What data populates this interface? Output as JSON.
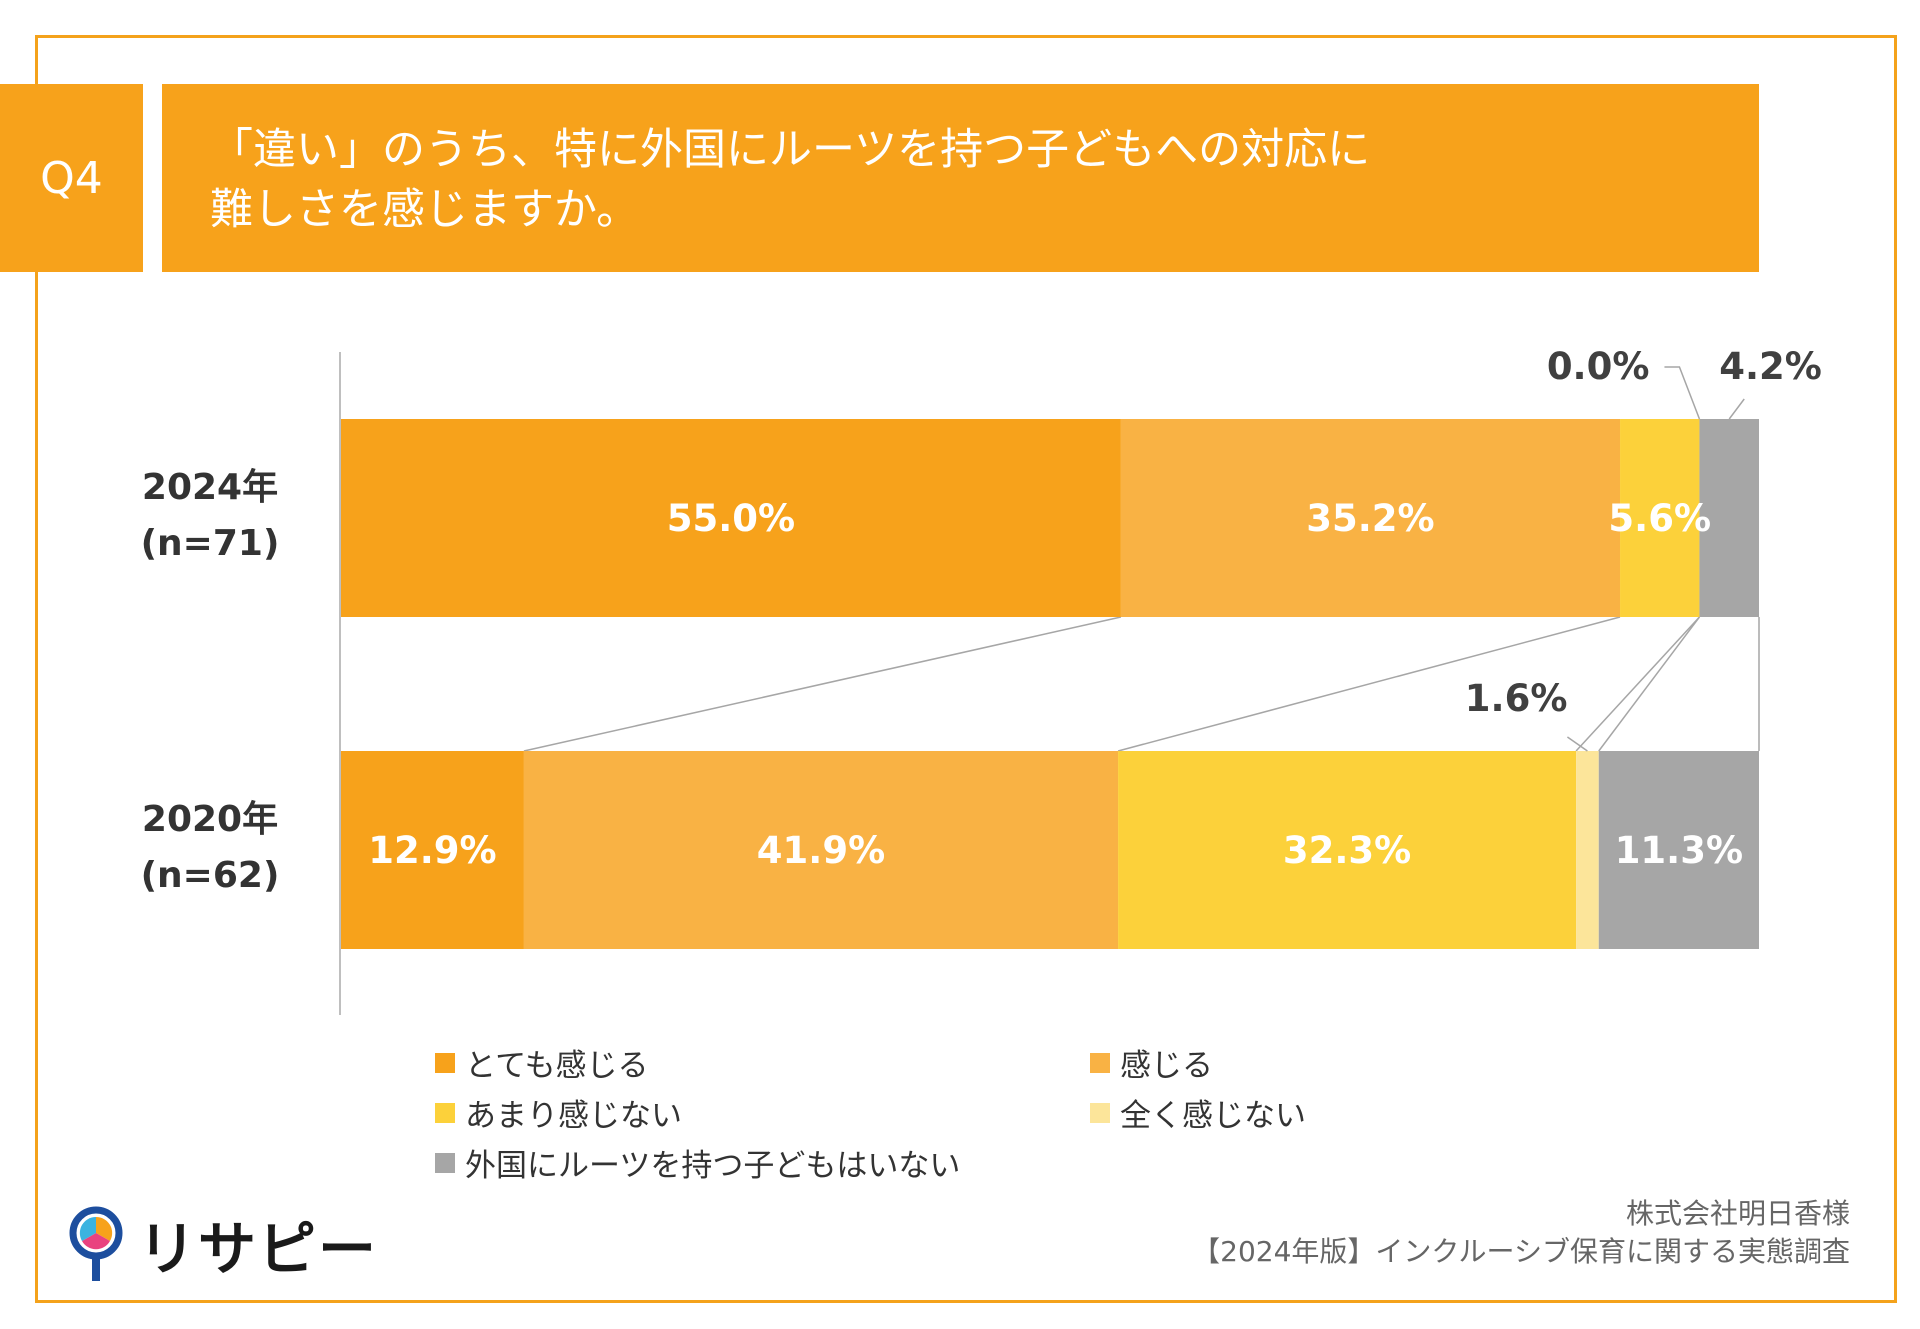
{
  "header": {
    "question_label": "Q4",
    "title_line1": "「違い」のうち、特に外国にルーツを持つ子どもへの対応に",
    "title_line2": "難しさを感じますか。"
  },
  "colors": {
    "frame": "#F4A21B",
    "title_bg": "#F7A21B",
    "series": [
      "#F7A21B",
      "#F9B244",
      "#FCD13A",
      "#FCE59A",
      "#A6A6A6"
    ]
  },
  "chart_data": {
    "type": "bar",
    "orientation": "horizontal",
    "stacked": true,
    "normalized": true,
    "categories": [
      "2024年",
      "2020年"
    ],
    "category_n": [
      "(n=71)",
      "(n=62)"
    ],
    "series": [
      {
        "name": "とても感じる",
        "values": [
          55.0,
          12.9
        ],
        "labels": [
          "55.0%",
          "12.9%"
        ]
      },
      {
        "name": "感じる",
        "values": [
          35.2,
          41.9
        ],
        "labels": [
          "35.2%",
          "41.9%"
        ]
      },
      {
        "name": "あまり感じない",
        "values": [
          5.6,
          32.3
        ],
        "labels": [
          "5.6%",
          "32.3%"
        ]
      },
      {
        "name": "全く感じない",
        "values": [
          0.0,
          1.6
        ],
        "labels": [
          "0.0%",
          "1.6%"
        ]
      },
      {
        "name": "外国にルーツを持つ子どもはいない",
        "values": [
          4.2,
          11.3
        ],
        "labels": [
          "4.2%",
          "11.3%"
        ]
      }
    ],
    "xlim": [
      0,
      100
    ],
    "legend_position": "bottom"
  },
  "legend": {
    "items": [
      "とても感じる",
      "感じる",
      "あまり感じない",
      "全く感じない",
      "外国にルーツを持つ子どもはいない"
    ]
  },
  "footer": {
    "logo_text": "リサピー",
    "source_line1": "株式会社明日香様",
    "source_line2": "【2024年版】インクルーシブ保育に関する実態調査"
  }
}
